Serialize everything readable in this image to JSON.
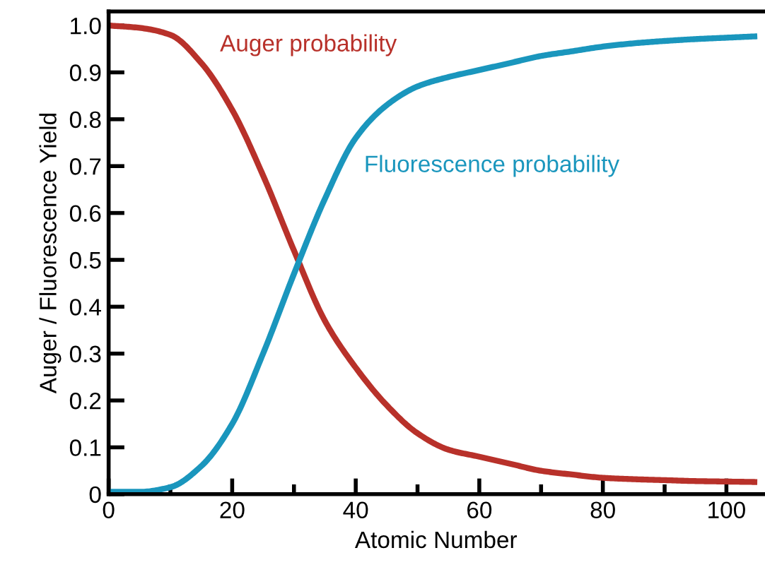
{
  "chart_data": {
    "type": "line",
    "xlabel": "Atomic Number",
    "ylabel": "Auger / Fluorescence Yield",
    "x": [
      0,
      5,
      10,
      15,
      20,
      25,
      30,
      35,
      40,
      45,
      50,
      55,
      60,
      65,
      70,
      75,
      80,
      85,
      90,
      95,
      100,
      105
    ],
    "series": [
      {
        "name": "Auger probability",
        "color": "#b8312a",
        "values": [
          1.0,
          0.995,
          0.98,
          0.92,
          0.82,
          0.68,
          0.52,
          0.37,
          0.27,
          0.19,
          0.13,
          0.095,
          0.08,
          0.065,
          0.05,
          0.042,
          0.035,
          0.032,
          0.03,
          0.028,
          0.027,
          0.026
        ]
      },
      {
        "name": "Fluorescence probability",
        "color": "#1a96bd",
        "values": [
          0.005,
          0.005,
          0.015,
          0.06,
          0.15,
          0.3,
          0.47,
          0.63,
          0.76,
          0.83,
          0.87,
          0.89,
          0.905,
          0.92,
          0.935,
          0.945,
          0.955,
          0.962,
          0.967,
          0.971,
          0.974,
          0.977
        ]
      }
    ],
    "xlim": [
      0,
      106
    ],
    "ylim": [
      0,
      1.03
    ],
    "xticks": [
      0,
      {
        "value": 10,
        "label": null
      },
      20,
      {
        "value": 30,
        "label": null
      },
      40,
      {
        "value": 50,
        "label": null
      },
      60,
      {
        "value": 70,
        "label": null
      },
      80,
      {
        "value": 90,
        "label": null
      },
      100
    ],
    "yticks": [
      0,
      0.1,
      0.2,
      0.3,
      0.4,
      0.5,
      0.6,
      0.7,
      0.8,
      0.9,
      {
        "value": 1,
        "label": "1.0"
      }
    ],
    "grid": false,
    "legend": false,
    "marker": "none",
    "line_style": "solid"
  }
}
